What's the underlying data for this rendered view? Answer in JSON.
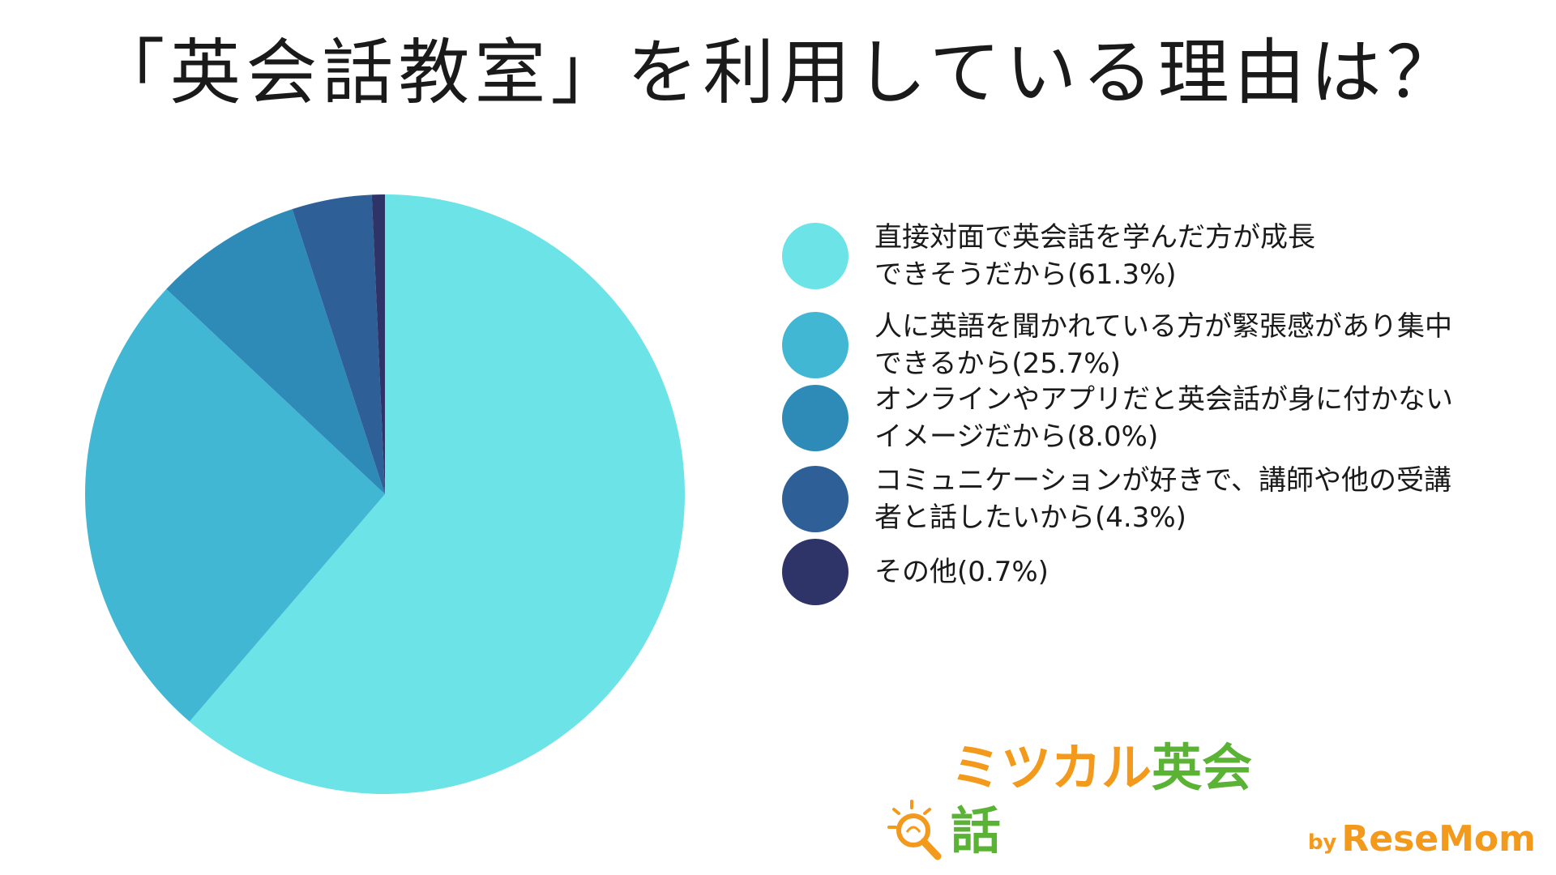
{
  "title": "「英会話教室」を利用している理由は？",
  "chart_data": {
    "type": "pie",
    "title": "「英会話教室」を利用している理由は？",
    "start_angle_deg": 0,
    "direction": "clockwise",
    "legend_position": "right",
    "slices": [
      {
        "label": "直接対面で英会話を学んだ方が成長\nできそうだから(61.3%)",
        "value": 61.3,
        "color": "#6ce4e7"
      },
      {
        "label": "人に英語を聞かれている方が緊張感があり集中\nできるから(25.7%)",
        "value": 25.7,
        "color": "#42b7d4"
      },
      {
        "label": "オンラインやアプリだと英会話が身に付かない\nイメージだから(8.0%)",
        "value": 8.0,
        "color": "#2e8bb8"
      },
      {
        "label": "コミュニケーションが好きで、講師や他の受講\n者と話したいから(4.3%)",
        "value": 4.3,
        "color": "#2e5f96"
      },
      {
        "label": "その他(0.7%)",
        "value": 0.7,
        "color": "#2e3468"
      }
    ]
  },
  "logo": {
    "part1": "ミツカル",
    "part2": "英会話",
    "by": "by",
    "brand": "ReseMom",
    "orange": "#f39a1c",
    "green": "#5bb335",
    "icon": "magnifier-lightbulb-icon"
  }
}
